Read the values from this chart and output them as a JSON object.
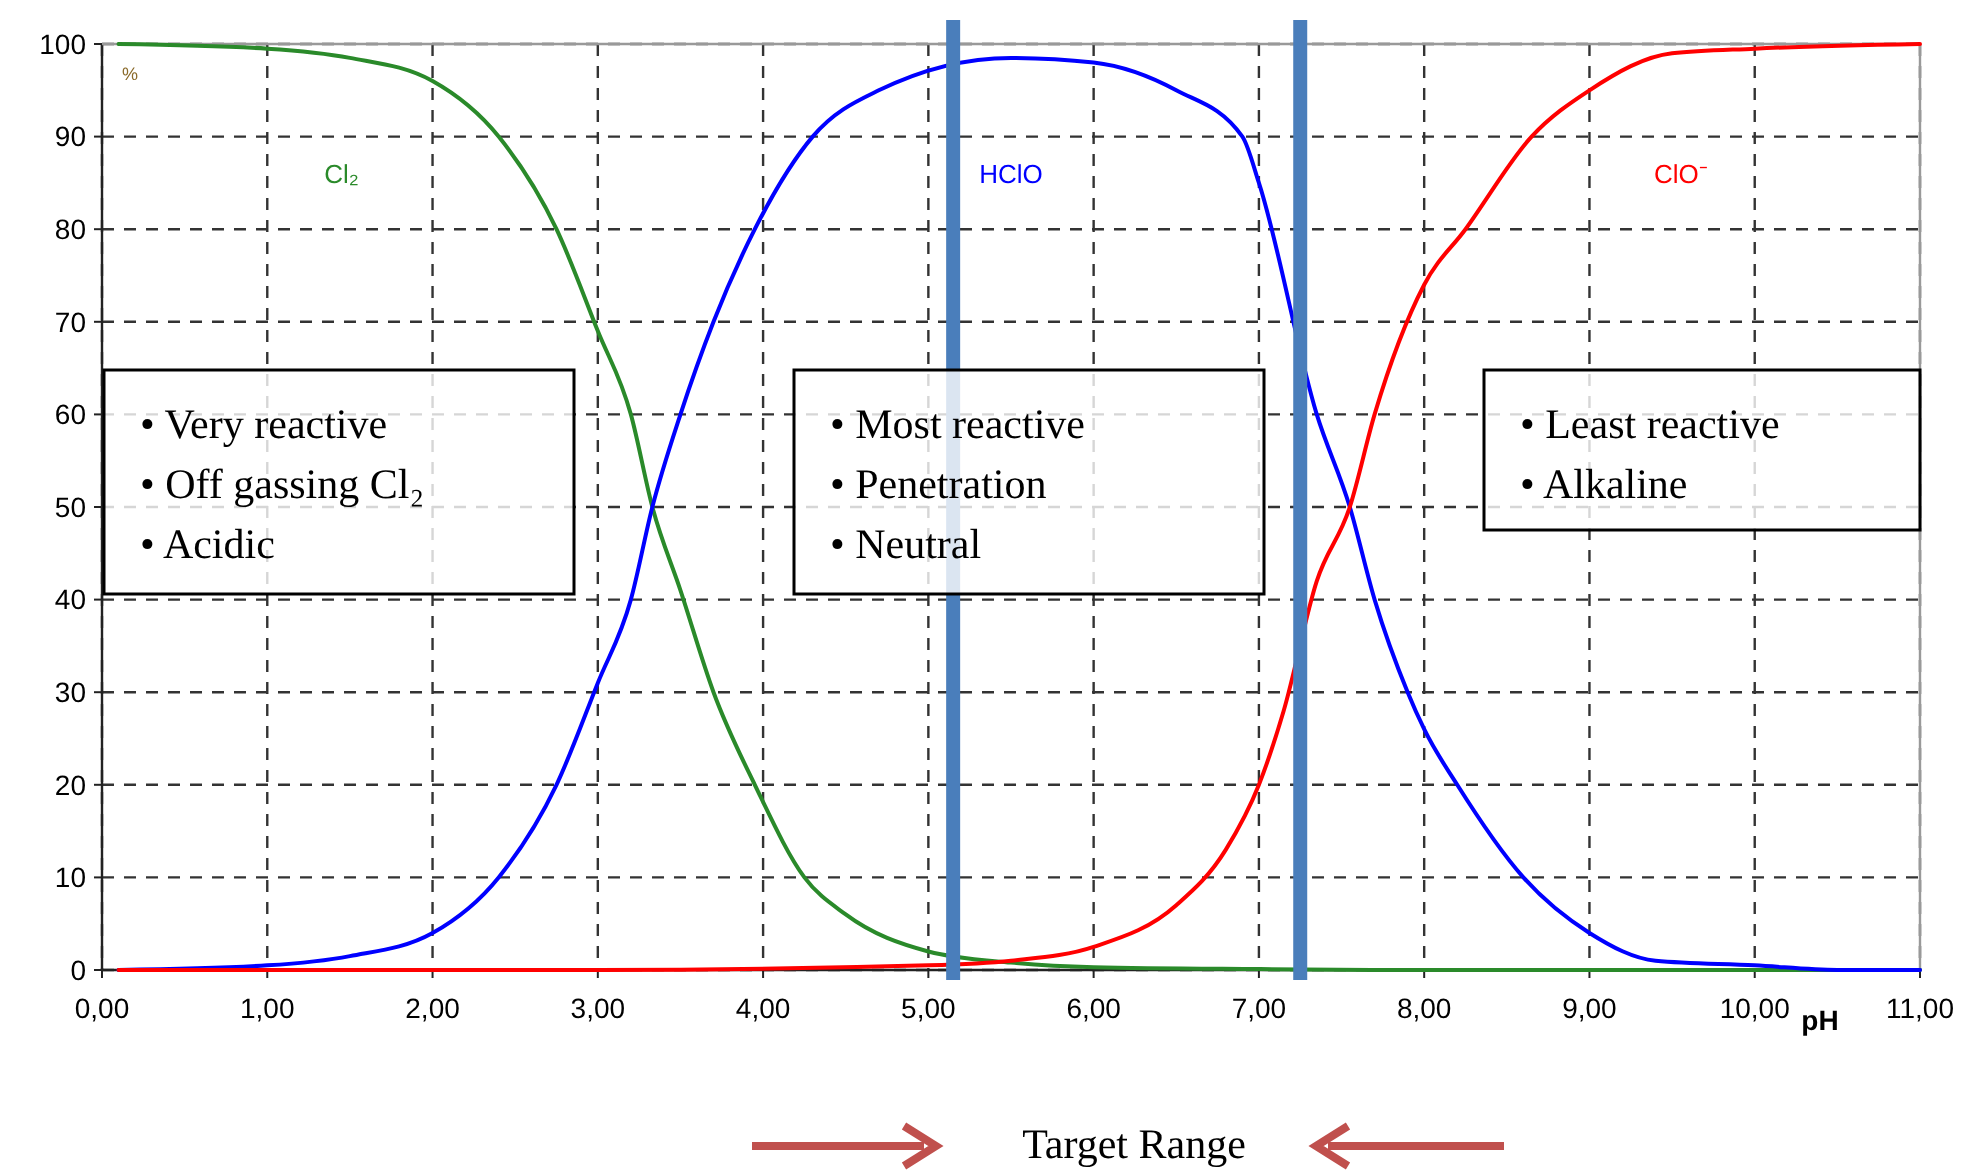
{
  "chart_data": {
    "type": "line",
    "ylabel": "%",
    "xlabel": "pH",
    "xlim": [
      0,
      11
    ],
    "ylim": [
      0,
      100
    ],
    "xticks": [
      {
        "value": 0,
        "label": "0,00"
      },
      {
        "value": 1,
        "label": "1,00"
      },
      {
        "value": 2,
        "label": "2,00"
      },
      {
        "value": 3,
        "label": "3,00"
      },
      {
        "value": 4,
        "label": "4,00"
      },
      {
        "value": 5,
        "label": "5,00"
      },
      {
        "value": 6,
        "label": "6,00"
      },
      {
        "value": 7,
        "label": "7,00"
      },
      {
        "value": 8,
        "label": "8,00"
      },
      {
        "value": 9,
        "label": "9,00"
      },
      {
        "value": 10,
        "label": "10,00"
      },
      {
        "value": 11,
        "label": "11,00"
      }
    ],
    "yticks": [
      0,
      10,
      20,
      30,
      40,
      50,
      60,
      70,
      80,
      90,
      100
    ],
    "grid": true,
    "marker": "none",
    "line_style": "solid",
    "series": [
      {
        "name": "Cl₂",
        "color": "#2a8a2a",
        "x": [
          0.1,
          1,
          1.5,
          2,
          2.4,
          2.75,
          3,
          3.2,
          3.33,
          3.5,
          3.7,
          3.95,
          4.25,
          4.5,
          5,
          5.5,
          6,
          7,
          8,
          9,
          10,
          11
        ],
        "values": [
          100,
          99.5,
          98.5,
          96,
          90,
          80,
          69,
          60,
          50,
          41,
          30,
          20,
          10,
          6,
          2,
          0.8,
          0.3,
          0.1,
          0,
          0,
          0,
          0
        ]
      },
      {
        "name": "HClO",
        "color": "#0000ff",
        "x": [
          0.1,
          1,
          1.5,
          2,
          2.4,
          2.75,
          3,
          3.2,
          3.33,
          3.5,
          3.7,
          3.95,
          4.3,
          4.7,
          5.5,
          6,
          6.5,
          6.9,
          7,
          7.35,
          7.55,
          7.7,
          7.9,
          8,
          8.2,
          8.6,
          9,
          9.4,
          10,
          10.5,
          11
        ],
        "values": [
          0,
          0.5,
          1.5,
          4,
          10,
          20,
          31,
          40,
          50,
          60,
          70,
          80,
          90,
          95,
          98.5,
          98,
          95,
          90,
          85,
          60,
          50,
          40,
          30,
          26,
          20,
          10,
          4,
          1,
          0.5,
          0,
          0
        ]
      },
      {
        "name": "ClO⁻",
        "color": "#ff0000",
        "x": [
          0.1,
          3,
          5,
          5.5,
          6,
          6.5,
          6.8,
          7,
          7.15,
          7.35,
          7.55,
          7.7,
          8,
          8.25,
          8.65,
          9,
          9.5,
          10,
          11
        ],
        "values": [
          0,
          0,
          0.5,
          1,
          2.5,
          7,
          13,
          20,
          28,
          42,
          50,
          60,
          74,
          80,
          90,
          95,
          99,
          99.5,
          100
        ]
      }
    ],
    "ref_lines": [
      {
        "axis": "x",
        "value": 5.15,
        "color": "#4a7ebb"
      },
      {
        "axis": "x",
        "value": 7.25,
        "color": "#4a7ebb"
      }
    ],
    "annotations": [
      "• Very reactive\n• Off gassing Cl₂\n• Acidic",
      "• Most reactive\n• Penetration\n• Neutral",
      "• Least reactive\n• Alkaline",
      "Target Range"
    ]
  }
}
